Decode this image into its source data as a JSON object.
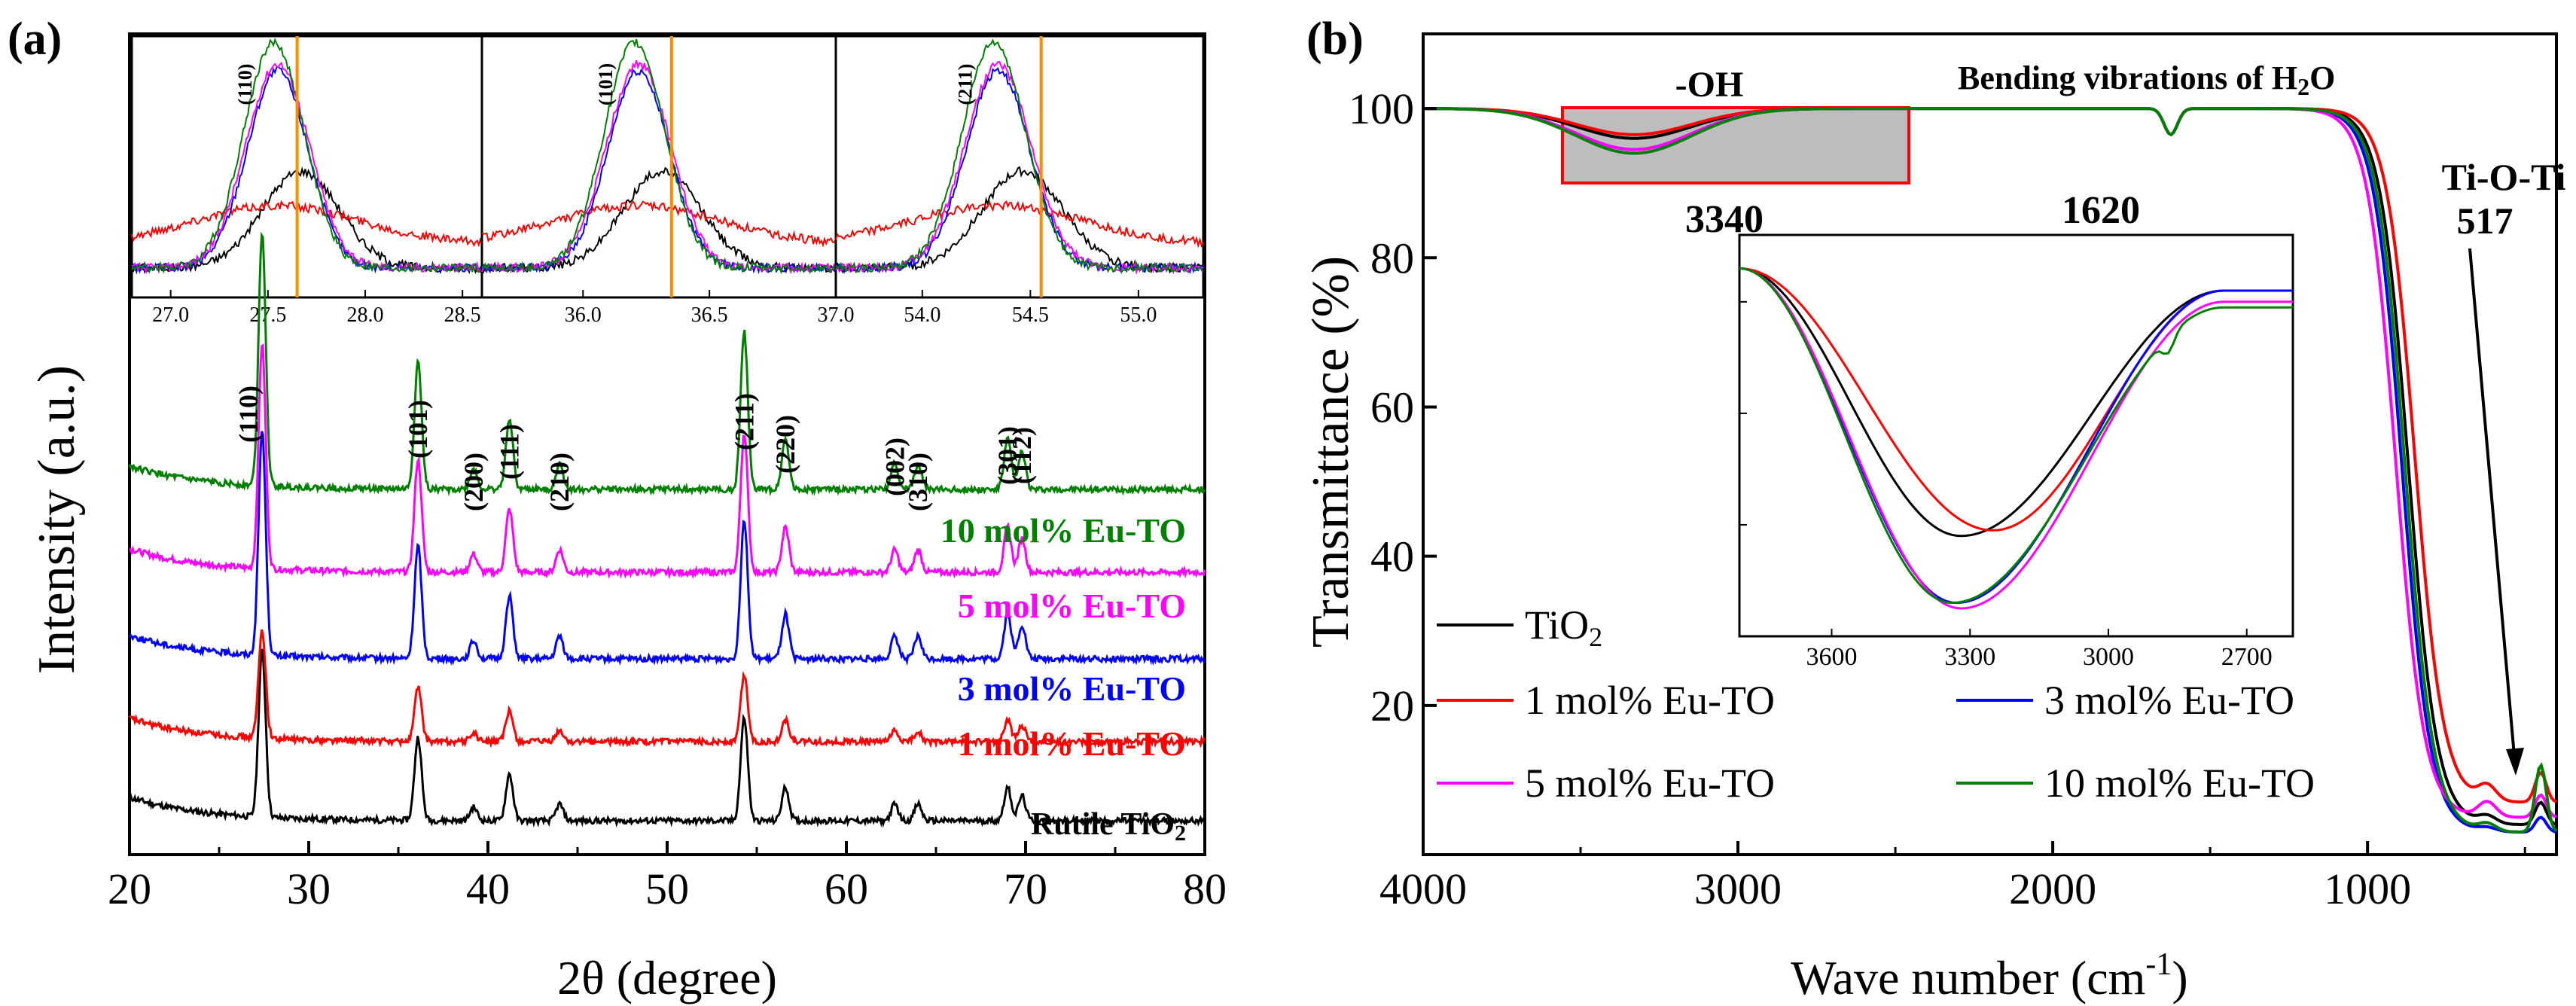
{
  "panel_a": {
    "label": "(a)",
    "chart_data": {
      "type": "line",
      "title": "",
      "xlabel": "2θ (degree)",
      "ylabel": "Intensity (a.u.)",
      "xlim": [
        20,
        80
      ],
      "xticks": [
        "20",
        "30",
        "40",
        "50",
        "60",
        "70",
        "80"
      ],
      "series": [
        {
          "name": "Rutile TiO2",
          "legend_label": "Rutile TiO",
          "legend_sub": "2",
          "color": "#000000",
          "baseline": 0.0,
          "scale": 0.85
        },
        {
          "name": "1 mol% Eu-TO",
          "legend_label": "1 mol% Eu-TO",
          "color": "#ff0000",
          "baseline": 0.65,
          "scale": 0.55
        },
        {
          "name": "3 mol% Eu-TO",
          "legend_label": "3 mol% Eu-TO",
          "color": "#0000ff",
          "baseline": 1.3,
          "scale": 1.15
        },
        {
          "name": "5 mol% Eu-TO",
          "legend_label": "5 mol% Eu-TO",
          "color": "#ff00ff",
          "baseline": 1.95,
          "scale": 1.15
        },
        {
          "name": "10 mol% Eu-TO",
          "legend_label": "10 mol% Eu-TO",
          "color": "#008000",
          "baseline": 2.6,
          "scale": 1.3
        }
      ],
      "peaks": [
        {
          "hkl": "(110)",
          "x": 27.4,
          "height": 1.0
        },
        {
          "hkl": "(101)",
          "x": 36.1,
          "height": 0.5
        },
        {
          "hkl": "(200)",
          "x": 39.2,
          "height": 0.08
        },
        {
          "hkl": "(111)",
          "x": 41.2,
          "height": 0.28
        },
        {
          "hkl": "(210)",
          "x": 44.0,
          "height": 0.1
        },
        {
          "hkl": "(211)",
          "x": 54.3,
          "height": 0.62
        },
        {
          "hkl": "(220)",
          "x": 56.6,
          "height": 0.2
        },
        {
          "hkl": "(002)",
          "x": 62.7,
          "height": 0.1
        },
        {
          "hkl": "(310)",
          "x": 64.0,
          "height": 0.1
        },
        {
          "hkl": "(301)",
          "x": 69.0,
          "height": 0.2
        },
        {
          "hkl": "(112)",
          "x": 69.8,
          "height": 0.15
        }
      ],
      "insets": [
        {
          "hkl": "(110)",
          "xlim": [
            26.8,
            28.6
          ],
          "xticks": [
            "27.0",
            "27.5",
            "28.0",
            "28.5"
          ],
          "ref_line": 27.65,
          "center": 27.55
        },
        {
          "hkl": "(101)",
          "xlim": [
            35.6,
            37.0
          ],
          "xticks": [
            "36.0",
            "36.5",
            "37.0"
          ],
          "ref_line": 36.35,
          "center": 36.22
        },
        {
          "hkl": "(211)",
          "xlim": [
            53.6,
            55.3
          ],
          "xticks": [
            "54.0",
            "54.5",
            "55.0"
          ],
          "ref_line": 54.55,
          "center": 54.35
        }
      ]
    }
  },
  "panel_b": {
    "label": "(b)",
    "chart_data": {
      "type": "line",
      "title": "",
      "xlabel": "Wave number (cm",
      "xlabel_sup": "-1",
      "xlabel_end": ")",
      "ylabel": "Transmittance (%)",
      "xlim": [
        4000,
        400
      ],
      "ylim": [
        0,
        110
      ],
      "xticks": [
        "4000",
        "3000",
        "2000",
        "1000"
      ],
      "yticks": [
        "20",
        "40",
        "60",
        "80",
        "100"
      ],
      "series": [
        {
          "name": "TiO2",
          "legend_label": "TiO",
          "legend_sub": "2",
          "color": "#000000"
        },
        {
          "name": "1 mol% Eu-TO",
          "legend_label": "1 mol% Eu-TO",
          "color": "#ff0000"
        },
        {
          "name": "3 mol% Eu-TO",
          "legend_label": "3 mol% Eu-TO",
          "color": "#0000ff"
        },
        {
          "name": "5 mol% Eu-TO",
          "legend_label": "5 mol% Eu-TO",
          "color": "#ff00ff"
        },
        {
          "name": "10 mol% Eu-TO",
          "legend_label": "10 mol% Eu-TO",
          "color": "#008000"
        }
      ],
      "annotations": {
        "oh_label": "-OH",
        "bending": "Bending vibrations of H",
        "bending_sub": "2",
        "bending_end": "O",
        "peak_3340": "3340",
        "peak_1620": "1620",
        "tioti": "Ti-O-Ti",
        "peak_517": "517"
      },
      "inset": {
        "xlim": [
          3800,
          2600
        ],
        "xticks": [
          "3600",
          "3300",
          "3000",
          "2700"
        ],
        "minima": [
          {
            "name": "TiO2",
            "x": 3320,
            "y": 38
          },
          {
            "name": "1 mol% Eu-TO",
            "x": 3250,
            "y": 39
          },
          {
            "name": "3 mol% Eu-TO",
            "x": 3330,
            "y": 26
          },
          {
            "name": "5 mol% Eu-TO",
            "x": 3320,
            "y": 25
          },
          {
            "name": "10 mol% Eu-TO",
            "x": 3340,
            "y": 26
          }
        ]
      }
    }
  }
}
